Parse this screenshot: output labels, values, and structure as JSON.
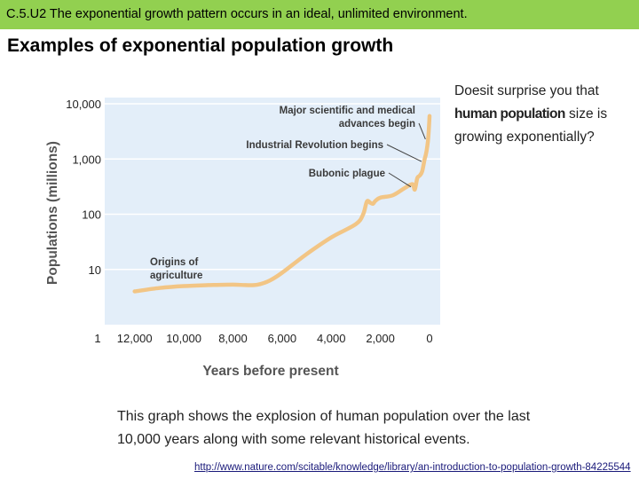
{
  "header": {
    "banner_text": "C.5.U2 The exponential growth pattern occurs in an ideal, unlimited environment.",
    "title": "Examples of exponential population growth",
    "banner_color": "#92d050"
  },
  "side_note": {
    "part1": "Doesit surprise you that",
    "emphasis": "human population",
    "part2": "size is growing exponentially?"
  },
  "caption": "This graph shows the explosion of human population over the last 10,000 years along with some relevant historical events.",
  "source": "http://www.nature.com/scitable/knowledge/library/an-introduction-to-population-growth-84225544",
  "chart_data": {
    "type": "line",
    "title": "",
    "xlabel": "Years before present",
    "ylabel": "Populations (millions)",
    "y_scale": "log",
    "ylim": [
      1,
      10000
    ],
    "yticks": [
      10,
      100,
      1000,
      10000
    ],
    "ytick_labels": [
      "10",
      "100",
      "1,000",
      "10,000"
    ],
    "xlim": [
      13000,
      0
    ],
    "xticks": [
      12000,
      10000,
      8000,
      6000,
      4000,
      2000,
      0
    ],
    "xtick_labels": [
      "12,000",
      "10,000",
      "8,000",
      "6,000",
      "4,000",
      "2,000",
      "0"
    ],
    "origin_label": "1",
    "line_color": "#f2c585",
    "plot_background": "#e3eef9",
    "x": [
      12000,
      11000,
      10000,
      9000,
      8000,
      7500,
      7000,
      6500,
      6000,
      5000,
      4000,
      3000,
      2700,
      2550,
      2400,
      2300,
      2200,
      2000,
      1500,
      1000,
      700,
      600,
      500,
      400,
      300,
      200,
      150,
      100,
      50,
      0
    ],
    "y": [
      4,
      4.6,
      5,
      5.2,
      5.3,
      5.2,
      5.3,
      6.3,
      8.7,
      19,
      38,
      66,
      100,
      170,
      160,
      155,
      175,
      200,
      220,
      300,
      350,
      280,
      450,
      500,
      600,
      1000,
      1200,
      1600,
      2500,
      6000
    ],
    "annotations": [
      {
        "lines": [
          "Major scientific and medical",
          "advances begin"
        ],
        "x": 60
      },
      {
        "lines": [
          "Industrial Revolution begins"
        ],
        "x": 220
      },
      {
        "lines": [
          "Bubonic plague"
        ],
        "x": 650
      },
      {
        "lines": [
          "Origins of",
          "agriculture"
        ],
        "x": 10000
      }
    ]
  }
}
